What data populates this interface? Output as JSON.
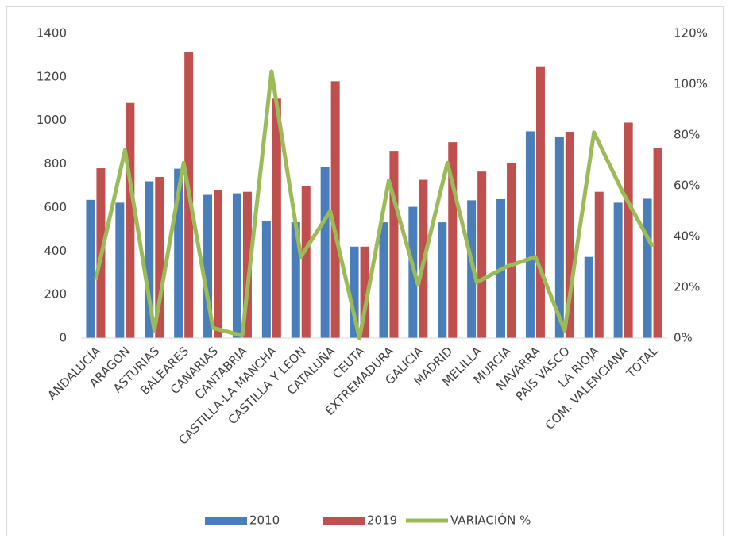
{
  "chart_data": {
    "type": "bar_line",
    "categories": [
      "ANDALUCÍA",
      "ARAGÓN",
      "ASTURIAS",
      "BALEARES",
      "CANARIAS",
      "CANTABRIA",
      "CASTILLA-LA MANCHA",
      "CASTILLA Y LEON",
      "CATALUÑA",
      "CEUTA",
      "EXTREMADURA",
      "GALICIA",
      "MADRID",
      "MELILLA",
      "MURCIA",
      "NAVARRA",
      "PAÍS VASCO",
      "LA RIOJA",
      "COM. VALENCIANA",
      "TOTAL"
    ],
    "series": [
      {
        "name": "2010",
        "color": "#4a7ebb",
        "type": "bar",
        "values": [
          635,
          622,
          720,
          778,
          658,
          665,
          537,
          532,
          787,
          420,
          532,
          603,
          532,
          633,
          638,
          950,
          925,
          373,
          622,
          640
        ]
      },
      {
        "name": "2019",
        "color": "#c0504d",
        "type": "bar",
        "values": [
          780,
          1080,
          740,
          1313,
          680,
          672,
          1100,
          697,
          1180,
          420,
          860,
          727,
          900,
          765,
          805,
          1248,
          948,
          672,
          990,
          872
        ]
      },
      {
        "name": "VARIACIÓN %",
        "color": "#9bbb59",
        "type": "line",
        "axis": "y2",
        "values": [
          23,
          74,
          3,
          69,
          4,
          1,
          105,
          32,
          50,
          0,
          62,
          21,
          69,
          22,
          28,
          32,
          3,
          81,
          57,
          36
        ]
      }
    ],
    "ylim": [
      0,
      1400
    ],
    "yticks": [
      0,
      200,
      400,
      600,
      800,
      1000,
      1200,
      1400
    ],
    "y2lim": [
      0,
      120
    ],
    "y2ticks": [
      {
        "value": 0,
        "label": "0%"
      },
      {
        "value": 20,
        "label": "20%"
      },
      {
        "value": 40,
        "label": "40%"
      },
      {
        "value": 60,
        "label": "60%"
      },
      {
        "value": 80,
        "label": "80%"
      },
      {
        "value": 100,
        "label": "100%"
      },
      {
        "value": 120,
        "label": "120%"
      }
    ],
    "legend": "bottom",
    "grid": false
  }
}
